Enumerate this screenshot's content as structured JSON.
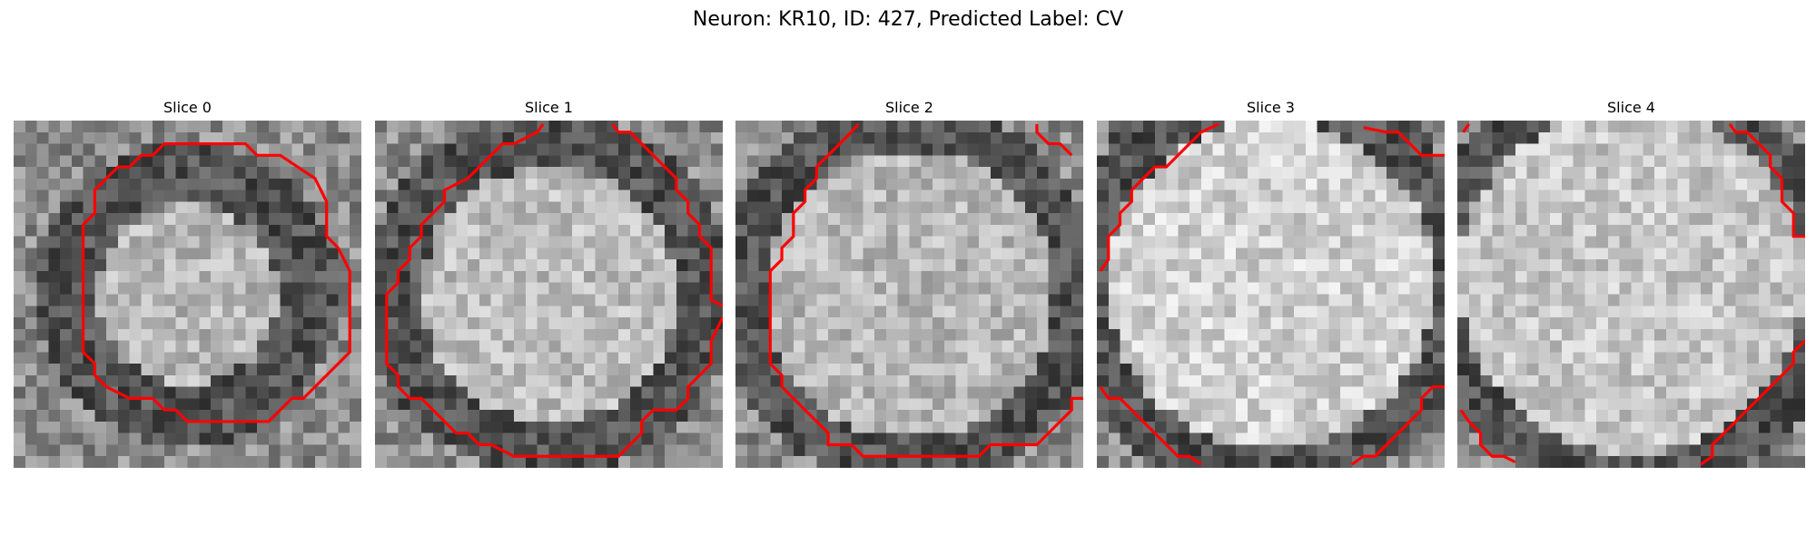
{
  "figure": {
    "title": "Neuron: KR10, ID: 427, Predicted Label: CV"
  },
  "panels": [
    {
      "title": "Slice 0",
      "center": [
        0.5,
        0.5
      ],
      "radius": 0.32,
      "ring": 0.1,
      "brightness": 0.72
    },
    {
      "title": "Slice 1",
      "center": [
        0.5,
        0.5
      ],
      "radius": 0.42,
      "ring": 0.09,
      "brightness": 0.74
    },
    {
      "title": "Slice 2",
      "center": [
        0.5,
        0.5
      ],
      "radius": 0.46,
      "ring": 0.08,
      "brightness": 0.72
    },
    {
      "title": "Slice 3",
      "center": [
        0.5,
        0.47
      ],
      "radius": 0.52,
      "ring": 0.08,
      "brightness": 0.82
    },
    {
      "title": "Slice 4",
      "center": [
        0.5,
        0.46
      ],
      "radius": 0.54,
      "ring": 0.07,
      "brightness": 0.78
    }
  ],
  "contour_color": "#ff0000"
}
